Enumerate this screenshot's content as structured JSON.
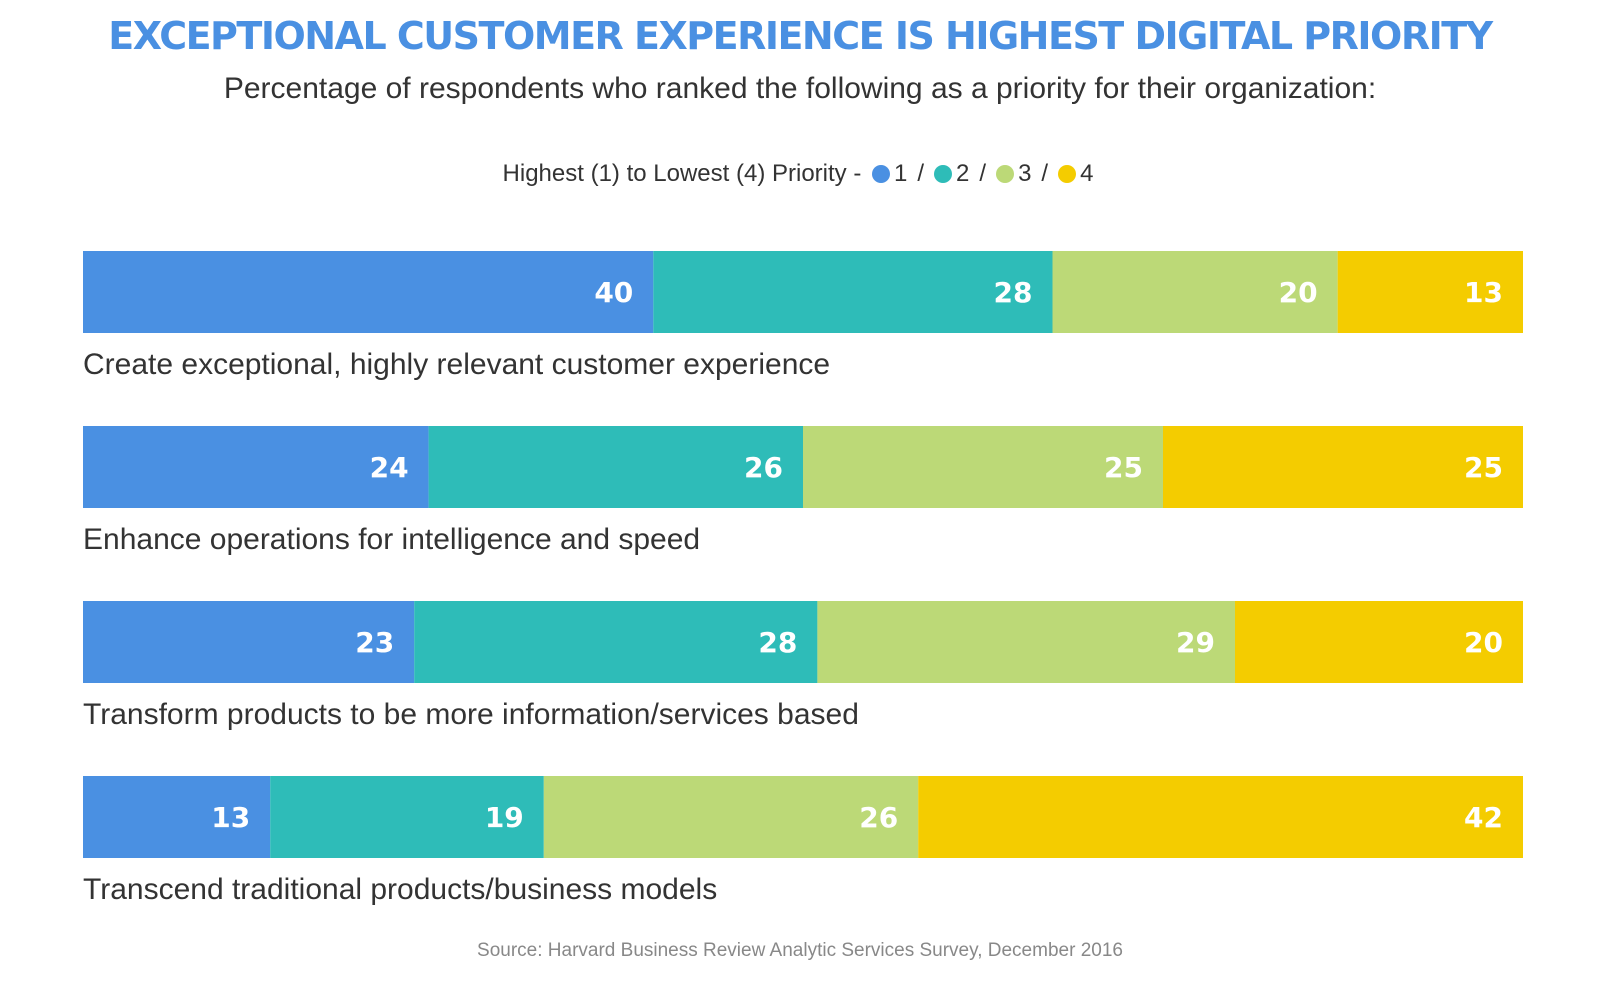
{
  "chart_data": {
    "type": "bar",
    "orientation": "horizontal",
    "stacked": true,
    "title": "EXCEPTIONAL CUSTOMER EXPERIENCE IS HIGHEST DIGITAL PRIORITY",
    "subtitle": "Percentage of respondents who ranked the following as a priority for their organization:",
    "legend": {
      "prefix": "Highest (1) to Lowest (4) Priority  -",
      "placement": "top-center",
      "separator": "/"
    },
    "categories": [
      "Create exceptional, highly relevant customer experience",
      "Enhance operations for intelligence and speed",
      "Transform products to be more information/services based",
      "Transcend traditional products/business models"
    ],
    "series": [
      {
        "name": "1",
        "color": "#4a90e2",
        "values": [
          40,
          24,
          23,
          13
        ]
      },
      {
        "name": "2",
        "color": "#2ebcb8",
        "values": [
          28,
          26,
          28,
          19
        ]
      },
      {
        "name": "3",
        "color": "#bcd977",
        "values": [
          20,
          25,
          29,
          26
        ]
      },
      {
        "name": "4",
        "color": "#f4cc00",
        "values": [
          13,
          25,
          20,
          42
        ]
      }
    ],
    "grid": false,
    "source": "Source: Harvard Business Review Analytic Services Survey, December 2016"
  }
}
